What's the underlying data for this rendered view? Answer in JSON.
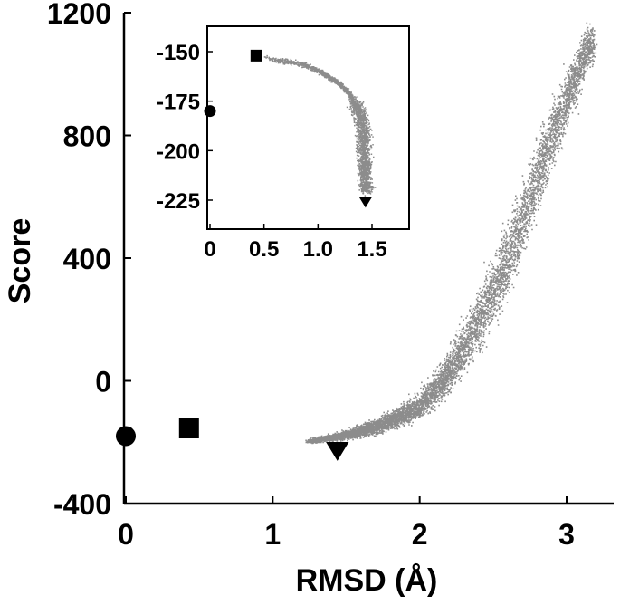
{
  "chart_data": [
    {
      "type": "scatter",
      "xlabel": "RMSD (Å)",
      "ylabel": "Score",
      "xlim": [
        0,
        3.3
      ],
      "ylim": [
        -400,
        1200
      ],
      "xticks": [
        0,
        1,
        2,
        3
      ],
      "yticks": [
        -400,
        0,
        400,
        800,
        1200
      ],
      "tick_labels_x": [
        "0",
        "1",
        "2",
        "3"
      ],
      "tick_labels_y": [
        "-400",
        "0",
        "400",
        "800",
        "1200"
      ],
      "markers": [
        {
          "shape": "circle",
          "x": 0.0,
          "y": -180,
          "color": "#000000"
        },
        {
          "shape": "square",
          "x": 0.43,
          "y": -155,
          "color": "#000000"
        },
        {
          "shape": "triangle-down",
          "x": 1.44,
          "y": -230,
          "color": "#000000"
        }
      ],
      "cloud": {
        "color": "#8c8c8c",
        "centerline": [
          [
            1.25,
            -195
          ],
          [
            1.5,
            -175
          ],
          [
            1.75,
            -140
          ],
          [
            2.0,
            -80
          ],
          [
            2.2,
            30
          ],
          [
            2.4,
            200
          ],
          [
            2.6,
            400
          ],
          [
            2.75,
            600
          ],
          [
            2.9,
            800
          ],
          [
            3.05,
            980
          ],
          [
            3.15,
            1100
          ]
        ],
        "spread": [
          [
            1.25,
            10
          ],
          [
            1.5,
            25
          ],
          [
            1.75,
            45
          ],
          [
            2.0,
            70
          ],
          [
            2.2,
            110
          ],
          [
            2.4,
            160
          ],
          [
            2.6,
            190
          ],
          [
            2.75,
            190
          ],
          [
            2.9,
            170
          ],
          [
            3.05,
            140
          ],
          [
            3.15,
            110
          ]
        ]
      },
      "grid": false,
      "legend": "none"
    },
    {
      "type": "scatter",
      "role": "inset",
      "xlabel": "",
      "ylabel": "",
      "xlim": [
        0,
        1.7
      ],
      "ylim": [
        -235,
        -140
      ],
      "xticks": [
        0,
        0.5,
        1.0,
        1.5
      ],
      "yticks": [
        -150,
        -175,
        -200,
        -225
      ],
      "tick_labels_x": [
        "0",
        "0.5",
        "1.0",
        "1.5"
      ],
      "tick_labels_y": [
        "-150",
        "-175",
        "-200",
        "-225"
      ],
      "markers": [
        {
          "shape": "circle",
          "x": 0.0,
          "y": -180,
          "color": "#000000"
        },
        {
          "shape": "square",
          "x": 0.43,
          "y": -152,
          "color": "#000000"
        },
        {
          "shape": "triangle-down",
          "x": 1.44,
          "y": -226,
          "color": "#000000"
        }
      ],
      "cloud": {
        "color": "#8c8c8c",
        "path": [
          [
            0.5,
            -153
          ],
          [
            0.6,
            -154
          ],
          [
            0.75,
            -155
          ],
          [
            0.9,
            -157
          ],
          [
            1.05,
            -161
          ],
          [
            1.2,
            -166
          ],
          [
            1.3,
            -172
          ],
          [
            1.38,
            -180
          ],
          [
            1.42,
            -190
          ],
          [
            1.42,
            -200
          ],
          [
            1.43,
            -210
          ],
          [
            1.44,
            -220
          ]
        ]
      },
      "grid": false,
      "legend": "none"
    }
  ]
}
